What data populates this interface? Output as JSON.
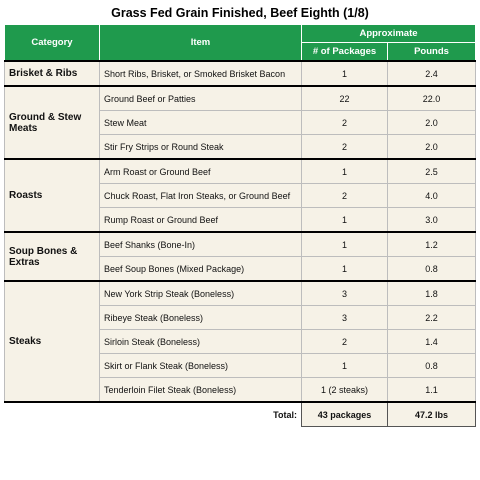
{
  "title": "Grass Fed Grain Finished, Beef Eighth (1/8)",
  "header": {
    "category": "Category",
    "item": "Item",
    "approximate": "Approximate",
    "packages": "# of Packages",
    "pounds": "Pounds"
  },
  "groups": [
    {
      "category": "Brisket & Ribs",
      "items": [
        {
          "item": "Short Ribs, Brisket, or Smoked Brisket Bacon",
          "packages": "1",
          "pounds": "2.4"
        }
      ]
    },
    {
      "category": "Ground & Stew Meats",
      "items": [
        {
          "item": "Ground Beef or Patties",
          "packages": "22",
          "pounds": "22.0"
        },
        {
          "item": "Stew Meat",
          "packages": "2",
          "pounds": "2.0"
        },
        {
          "item": "Stir Fry Strips or Round Steak",
          "packages": "2",
          "pounds": "2.0"
        }
      ]
    },
    {
      "category": "Roasts",
      "items": [
        {
          "item": "Arm Roast or Ground Beef",
          "packages": "1",
          "pounds": "2.5"
        },
        {
          "item": "Chuck Roast, Flat Iron Steaks, or Ground Beef",
          "packages": "2",
          "pounds": "4.0"
        },
        {
          "item": "Rump Roast or Ground Beef",
          "packages": "1",
          "pounds": "3.0"
        }
      ]
    },
    {
      "category": "Soup Bones & Extras",
      "items": [
        {
          "item": "Beef Shanks (Bone-In)",
          "packages": "1",
          "pounds": "1.2"
        },
        {
          "item": "Beef Soup Bones (Mixed Package)",
          "packages": "1",
          "pounds": "0.8"
        }
      ]
    },
    {
      "category": "Steaks",
      "items": [
        {
          "item": "New York Strip Steak (Boneless)",
          "packages": "3",
          "pounds": "1.8"
        },
        {
          "item": "Ribeye Steak (Boneless)",
          "packages": "3",
          "pounds": "2.2"
        },
        {
          "item": "Sirloin Steak (Boneless)",
          "packages": "2",
          "pounds": "1.4"
        },
        {
          "item": "Skirt or Flank Steak (Boneless)",
          "packages": "1",
          "pounds": "0.8"
        },
        {
          "item": "Tenderloin Filet Steak (Boneless)",
          "packages": "1 (2 steaks)",
          "pounds": "1.1"
        }
      ]
    }
  ],
  "total": {
    "label": "Total:",
    "packages": "43 packages",
    "pounds": "47.2 lbs"
  }
}
